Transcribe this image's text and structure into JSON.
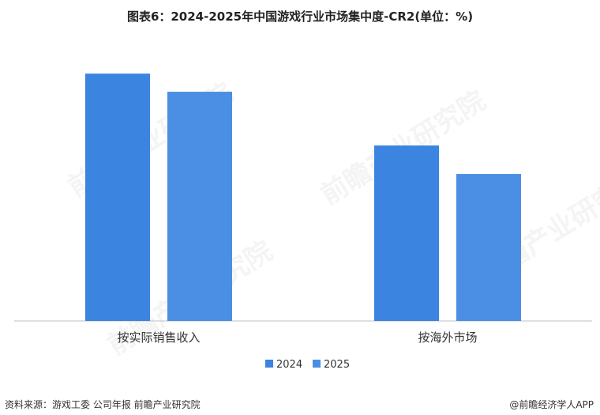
{
  "title": "图表6：2024-2025年中国游戏行业市场集中度-CR2(单位：%)",
  "footer": {
    "source": "资料来源：游戏工委 公司年报 前瞻产业研究院",
    "brand": "@前瞻经济学人APP"
  },
  "watermark": "前瞻产业研究院",
  "chart_data": {
    "type": "bar",
    "categories": [
      "按实际销售收入",
      "按海外市场"
    ],
    "series": [
      {
        "name": "2024",
        "values": [
          62.2,
          51.1
        ],
        "color": "#3B84E0"
      },
      {
        "name": "2025",
        "values": [
          59.4,
          46.7
        ],
        "color": "#4A8FE3"
      }
    ],
    "ylim": [
      24,
      66
    ],
    "legend_position": "bottom-center",
    "grid": false
  }
}
